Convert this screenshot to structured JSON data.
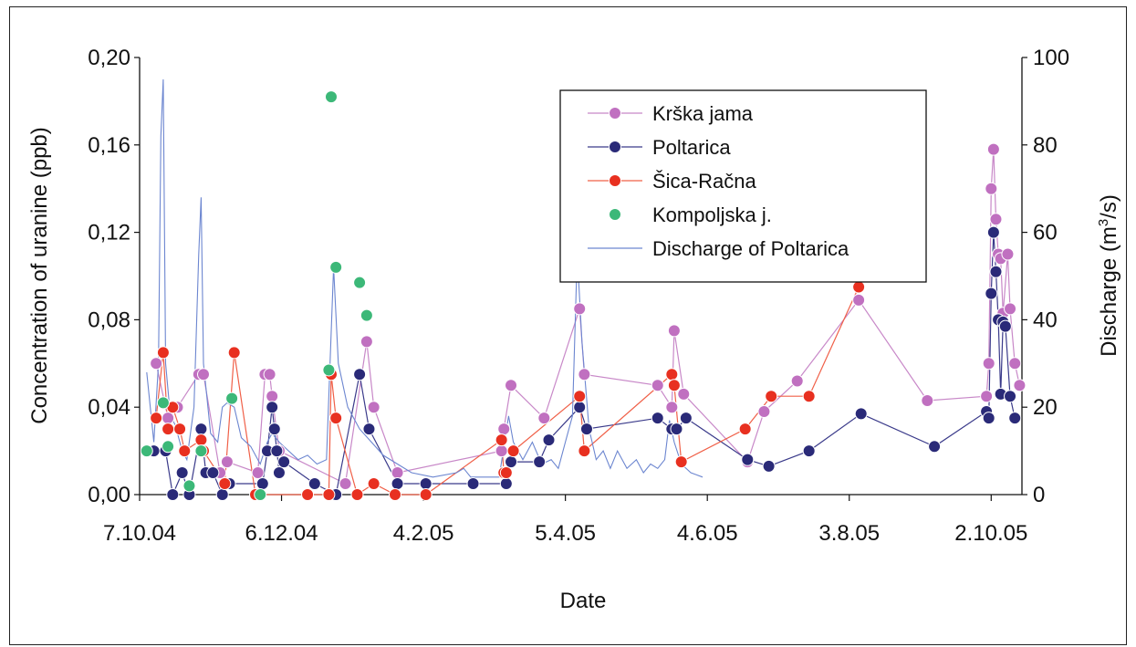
{
  "chart_data": {
    "type": "scatter",
    "xlabel": "Date",
    "ylabel_left": "Concentration of uranine (ppb)",
    "ylabel_right_prefix": "Discharge (m",
    "ylabel_right_sup": "3",
    "ylabel_right_suffix": "/s)",
    "x_start": "2004-10-07",
    "x_end": "2005-10-15",
    "x_ticks": [
      {
        "date": "2004-10-07",
        "label": "7.10.04"
      },
      {
        "date": "2004-12-06",
        "label": "6.12.04"
      },
      {
        "date": "2005-02-04",
        "label": "4.2.05"
      },
      {
        "date": "2005-04-05",
        "label": "5.4.05"
      },
      {
        "date": "2005-06-04",
        "label": "4.6.05"
      },
      {
        "date": "2005-08-03",
        "label": "3.8.05"
      },
      {
        "date": "2005-10-02",
        "label": "2.10.05"
      }
    ],
    "ylim_left": [
      0,
      0.2
    ],
    "y_ticks_left": [
      {
        "v": 0,
        "label": "0,00"
      },
      {
        "v": 0.04,
        "label": "0,04"
      },
      {
        "v": 0.08,
        "label": "0,08"
      },
      {
        "v": 0.12,
        "label": "0,12"
      },
      {
        "v": 0.16,
        "label": "0,16"
      },
      {
        "v": 0.2,
        "label": "0,20"
      }
    ],
    "ylim_right": [
      0,
      100
    ],
    "y_ticks_right": [
      {
        "v": 0,
        "label": "0"
      },
      {
        "v": 20,
        "label": "20"
      },
      {
        "v": 40,
        "label": "40"
      },
      {
        "v": 60,
        "label": "60"
      },
      {
        "v": 80,
        "label": "80"
      },
      {
        "v": 100,
        "label": "100"
      }
    ],
    "legend_position": "top-right",
    "series": [
      {
        "name": "Krška jama",
        "color": "#c070c0",
        "line_color": "#c888c8",
        "kind": "marker-line",
        "points": [
          [
            "2004-10-14",
            0.06
          ],
          [
            "2004-10-19",
            0.035
          ],
          [
            "2004-10-23",
            0.04
          ],
          [
            "2004-11-01",
            0.055
          ],
          [
            "2004-11-03",
            0.055
          ],
          [
            "2004-11-10",
            0.01
          ],
          [
            "2004-11-13",
            0.015
          ],
          [
            "2004-11-26",
            0.01
          ],
          [
            "2004-11-29",
            0.055
          ],
          [
            "2004-12-01",
            0.055
          ],
          [
            "2004-12-02",
            0.045
          ],
          [
            "2004-12-05",
            0.02
          ],
          [
            "2005-01-02",
            0.005
          ],
          [
            "2005-01-11",
            0.07
          ],
          [
            "2005-01-14",
            0.04
          ],
          [
            "2005-01-24",
            0.01
          ],
          [
            "2005-03-09",
            0.02
          ],
          [
            "2005-03-10",
            0.03
          ],
          [
            "2005-03-13",
            0.05
          ],
          [
            "2005-03-27",
            0.035
          ],
          [
            "2005-04-11",
            0.085
          ],
          [
            "2005-04-13",
            0.055
          ],
          [
            "2005-05-14",
            0.05
          ],
          [
            "2005-05-20",
            0.04
          ],
          [
            "2005-05-21",
            0.075
          ],
          [
            "2005-05-25",
            0.046
          ],
          [
            "2005-06-21",
            0.015
          ],
          [
            "2005-06-28",
            0.038
          ],
          [
            "2005-07-12",
            0.052
          ],
          [
            "2005-08-07",
            0.089
          ],
          [
            "2005-09-05",
            0.043
          ],
          [
            "2005-09-30",
            0.045
          ],
          [
            "2005-10-01",
            0.06
          ],
          [
            "2005-10-02",
            0.14
          ],
          [
            "2005-10-03",
            0.158
          ],
          [
            "2005-10-04",
            0.126
          ],
          [
            "2005-10-05",
            0.11
          ],
          [
            "2005-10-06",
            0.108
          ],
          [
            "2005-10-07",
            0.083
          ],
          [
            "2005-10-09",
            0.11
          ],
          [
            "2005-10-10",
            0.085
          ],
          [
            "2005-10-12",
            0.06
          ],
          [
            "2005-10-14",
            0.05
          ]
        ]
      },
      {
        "name": "Poltarica",
        "color": "#2a2a78",
        "line_color": "#3a3a8a",
        "kind": "marker-line",
        "points": [
          [
            "2004-10-13",
            0.02
          ],
          [
            "2004-10-18",
            0.02
          ],
          [
            "2004-10-21",
            0.0
          ],
          [
            "2004-10-25",
            0.01
          ],
          [
            "2004-10-28",
            0.0
          ],
          [
            "2004-11-02",
            0.03
          ],
          [
            "2004-11-04",
            0.01
          ],
          [
            "2004-11-07",
            0.01
          ],
          [
            "2004-11-11",
            0.0
          ],
          [
            "2004-11-14",
            0.005
          ],
          [
            "2004-11-28",
            0.005
          ],
          [
            "2004-11-30",
            0.02
          ],
          [
            "2004-12-02",
            0.04
          ],
          [
            "2004-12-03",
            0.03
          ],
          [
            "2004-12-04",
            0.02
          ],
          [
            "2004-12-05",
            0.01
          ],
          [
            "2004-12-07",
            0.015
          ],
          [
            "2004-12-20",
            0.005
          ],
          [
            "2004-12-29",
            0.0
          ],
          [
            "2005-01-08",
            0.055
          ],
          [
            "2005-01-12",
            0.03
          ],
          [
            "2005-01-24",
            0.005
          ],
          [
            "2005-02-05",
            0.005
          ],
          [
            "2005-02-25",
            0.005
          ],
          [
            "2005-03-11",
            0.005
          ],
          [
            "2005-03-13",
            0.015
          ],
          [
            "2005-03-25",
            0.015
          ],
          [
            "2005-03-29",
            0.025
          ],
          [
            "2005-04-11",
            0.04
          ],
          [
            "2005-04-14",
            0.03
          ],
          [
            "2005-05-14",
            0.035
          ],
          [
            "2005-05-20",
            0.03
          ],
          [
            "2005-05-22",
            0.03
          ],
          [
            "2005-05-26",
            0.035
          ],
          [
            "2005-06-21",
            0.016
          ],
          [
            "2005-06-30",
            0.013
          ],
          [
            "2005-07-17",
            0.02
          ],
          [
            "2005-08-08",
            0.037
          ],
          [
            "2005-09-08",
            0.022
          ],
          [
            "2005-09-30",
            0.038
          ],
          [
            "2005-10-01",
            0.035
          ],
          [
            "2005-10-02",
            0.092
          ],
          [
            "2005-10-03",
            0.12
          ],
          [
            "2005-10-04",
            0.102
          ],
          [
            "2005-10-05",
            0.08
          ],
          [
            "2005-10-06",
            0.046
          ],
          [
            "2005-10-07",
            0.079
          ],
          [
            "2005-10-08",
            0.077
          ],
          [
            "2005-10-10",
            0.045
          ],
          [
            "2005-10-12",
            0.035
          ]
        ]
      },
      {
        "name": "Šica-Račna",
        "color": "#e83020",
        "line_color": "#f06048",
        "kind": "marker-line",
        "points": [
          [
            "2004-10-14",
            0.035
          ],
          [
            "2004-10-17",
            0.065
          ],
          [
            "2004-10-19",
            0.03
          ],
          [
            "2004-10-21",
            0.04
          ],
          [
            "2004-10-24",
            0.03
          ],
          [
            "2004-10-26",
            0.02
          ],
          [
            "2004-11-02",
            0.025
          ],
          [
            "2004-11-03",
            0.02
          ],
          [
            "2004-11-12",
            0.005
          ],
          [
            "2004-11-16",
            0.065
          ],
          [
            "2004-11-25",
            0.0
          ],
          [
            "2004-12-17",
            0.0
          ],
          [
            "2004-12-26",
            0.0
          ],
          [
            "2004-12-27",
            0.055
          ],
          [
            "2004-12-29",
            0.035
          ],
          [
            "2005-01-07",
            0.0
          ],
          [
            "2005-01-14",
            0.005
          ],
          [
            "2005-01-23",
            0.0
          ],
          [
            "2005-02-05",
            0.0
          ],
          [
            "2005-03-09",
            0.025
          ],
          [
            "2005-03-10",
            0.01
          ],
          [
            "2005-03-11",
            0.01
          ],
          [
            "2005-03-14",
            0.02
          ],
          [
            "2005-04-11",
            0.045
          ],
          [
            "2005-04-13",
            0.02
          ],
          [
            "2005-05-20",
            0.055
          ],
          [
            "2005-05-21",
            0.05
          ],
          [
            "2005-05-24",
            0.015
          ],
          [
            "2005-06-20",
            0.03
          ],
          [
            "2005-07-01",
            0.045
          ],
          [
            "2005-07-17",
            0.045
          ],
          [
            "2005-08-07",
            0.095
          ]
        ]
      },
      {
        "name": "Kompoljska j.",
        "color": "#3cb878",
        "line_color": "#3cb878",
        "kind": "marker",
        "points": [
          [
            "2004-10-10",
            0.02
          ],
          [
            "2004-10-17",
            0.042
          ],
          [
            "2004-10-19",
            0.022
          ],
          [
            "2004-10-28",
            0.004
          ],
          [
            "2004-11-02",
            0.02
          ],
          [
            "2004-11-15",
            0.044
          ],
          [
            "2004-11-27",
            0.0
          ],
          [
            "2004-12-26",
            0.057
          ],
          [
            "2004-12-27",
            0.182
          ],
          [
            "2004-12-29",
            0.104
          ],
          [
            "2005-01-08",
            0.097
          ],
          [
            "2005-01-11",
            0.082
          ]
        ]
      },
      {
        "name": "Discharge of Poltarica",
        "color": "#6c86d0",
        "line_color": "#6c86d0",
        "kind": "line",
        "axis": "right",
        "points": [
          [
            "2004-10-10",
            28
          ],
          [
            "2004-10-13",
            12
          ],
          [
            "2004-10-15",
            30
          ],
          [
            "2004-10-16",
            82
          ],
          [
            "2004-10-17",
            95
          ],
          [
            "2004-10-18",
            30
          ],
          [
            "2004-10-20",
            18
          ],
          [
            "2004-10-22",
            16
          ],
          [
            "2004-10-25",
            10
          ],
          [
            "2004-10-27",
            8
          ],
          [
            "2004-10-30",
            20
          ],
          [
            "2004-11-01",
            55
          ],
          [
            "2004-11-02",
            68
          ],
          [
            "2004-11-03",
            30
          ],
          [
            "2004-11-06",
            14
          ],
          [
            "2004-11-09",
            12
          ],
          [
            "2004-11-11",
            20
          ],
          [
            "2004-11-13",
            21
          ],
          [
            "2004-11-16",
            20
          ],
          [
            "2004-11-19",
            13
          ],
          [
            "2004-11-23",
            11
          ],
          [
            "2004-11-27",
            7
          ],
          [
            "2004-11-30",
            12
          ],
          [
            "2004-12-02",
            14
          ],
          [
            "2004-12-05",
            12
          ],
          [
            "2004-12-09",
            10
          ],
          [
            "2004-12-13",
            8
          ],
          [
            "2004-12-17",
            9
          ],
          [
            "2004-12-21",
            7
          ],
          [
            "2004-12-25",
            8
          ],
          [
            "2004-12-28",
            52
          ],
          [
            "2004-12-30",
            30
          ],
          [
            "2005-01-03",
            20
          ],
          [
            "2005-01-08",
            15
          ],
          [
            "2005-01-13",
            12
          ],
          [
            "2005-01-18",
            9
          ],
          [
            "2005-01-24",
            7
          ],
          [
            "2005-01-30",
            5
          ],
          [
            "2005-02-08",
            4
          ],
          [
            "2005-02-18",
            5
          ],
          [
            "2005-02-21",
            6
          ],
          [
            "2005-02-24",
            4
          ],
          [
            "2005-03-03",
            4
          ],
          [
            "2005-03-08",
            4
          ],
          [
            "2005-03-12",
            18
          ],
          [
            "2005-03-14",
            12
          ],
          [
            "2005-03-18",
            8
          ],
          [
            "2005-03-22",
            12
          ],
          [
            "2005-03-26",
            7
          ],
          [
            "2005-03-30",
            8
          ],
          [
            "2005-04-02",
            6
          ],
          [
            "2005-04-05",
            12
          ],
          [
            "2005-04-08",
            18
          ],
          [
            "2005-04-10",
            55
          ],
          [
            "2005-04-12",
            35
          ],
          [
            "2005-04-15",
            15
          ],
          [
            "2005-04-18",
            8
          ],
          [
            "2005-04-21",
            10
          ],
          [
            "2005-04-24",
            6
          ],
          [
            "2005-04-27",
            10
          ],
          [
            "2005-05-01",
            6
          ],
          [
            "2005-05-05",
            8
          ],
          [
            "2005-05-08",
            5
          ],
          [
            "2005-05-11",
            7
          ],
          [
            "2005-05-14",
            6
          ],
          [
            "2005-05-17",
            8
          ],
          [
            "2005-05-19",
            17
          ],
          [
            "2005-05-21",
            12
          ],
          [
            "2005-05-24",
            7
          ],
          [
            "2005-05-28",
            5
          ],
          [
            "2005-06-02",
            4
          ]
        ]
      }
    ]
  }
}
